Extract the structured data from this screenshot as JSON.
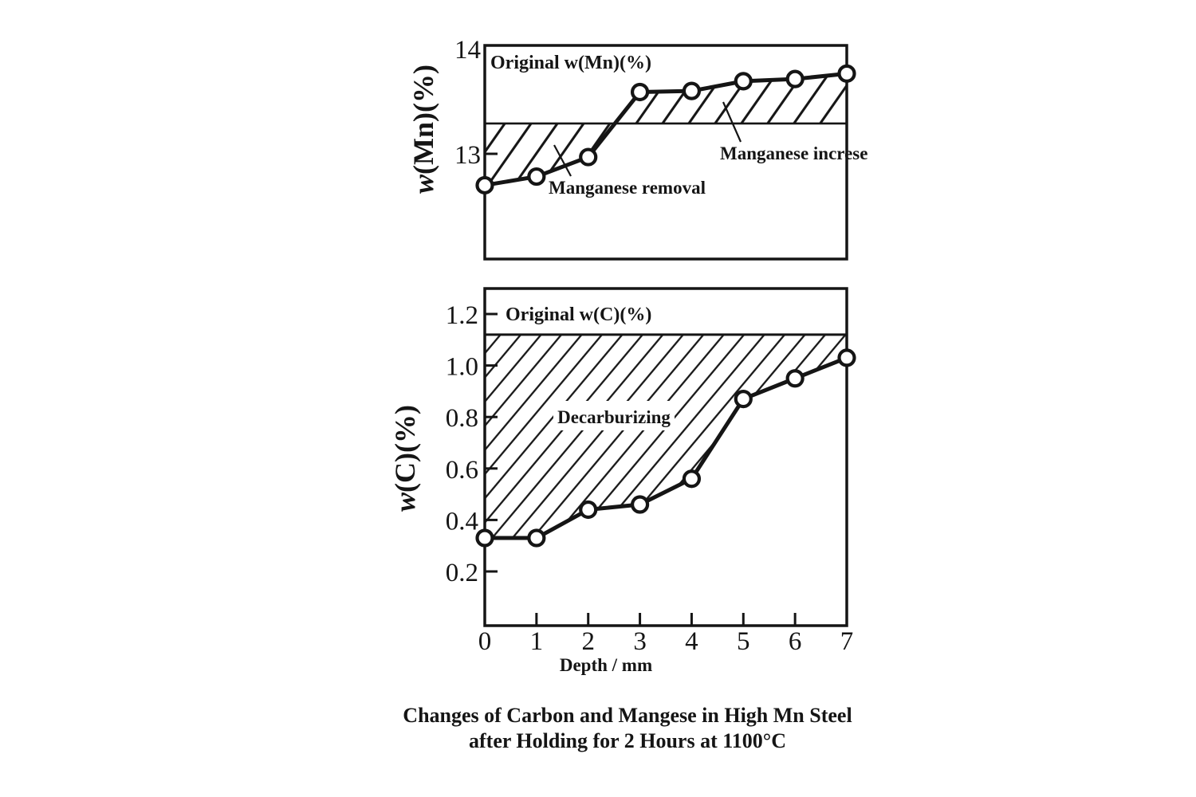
{
  "figure": {
    "caption_line1": "Changes of Carbon and Mangese in High Mn Steel",
    "caption_line2": "after Holding for 2 Hours at 1100°C"
  },
  "mn_chart": {
    "ylabel_w": "w",
    "ylabel_rest": "(Mn)(%)",
    "inner_label": "Original w(Mn)(%)",
    "annotation_removal": "Manganese removal",
    "annotation_increase": "Manganese increse",
    "yticks": [
      {
        "value": 14,
        "label": "14"
      },
      {
        "value": 13,
        "label": "13"
      }
    ]
  },
  "c_chart": {
    "ylabel_w": "w",
    "ylabel_rest": "(C)(%)",
    "inner_label": "Original w(C)(%)",
    "annotation": "Decarburizing",
    "xlabel": "Depth / mm",
    "yticks": [
      {
        "value": 1.2,
        "label": "1.2"
      },
      {
        "value": 1.0,
        "label": "1.0"
      },
      {
        "value": 0.8,
        "label": "0.8"
      },
      {
        "value": 0.6,
        "label": "0.6"
      },
      {
        "value": 0.4,
        "label": "0.4"
      },
      {
        "value": 0.2,
        "label": "0.2"
      }
    ],
    "xticks": [
      {
        "value": 0,
        "label": "0"
      },
      {
        "value": 1,
        "label": "1"
      },
      {
        "value": 2,
        "label": "2"
      },
      {
        "value": 3,
        "label": "3"
      },
      {
        "value": 4,
        "label": "4"
      },
      {
        "value": 5,
        "label": "5"
      },
      {
        "value": 6,
        "label": "6"
      },
      {
        "value": 7,
        "label": "7"
      }
    ]
  },
  "chart_data": [
    {
      "type": "line",
      "title": "Manganese content vs depth",
      "xlabel": "Depth / mm",
      "ylabel": "w(Mn)(%)",
      "x": [
        0,
        1,
        2,
        3,
        4,
        5,
        6,
        7
      ],
      "series": [
        {
          "name": "w(Mn)",
          "values": [
            12.71,
            12.79,
            12.97,
            13.57,
            13.58,
            13.67,
            13.69,
            13.74
          ]
        }
      ],
      "reference_line": {
        "label": "Original w(Mn)(%)",
        "value": 13.28
      },
      "annotations": [
        "Manganese removal",
        "Manganese increse"
      ],
      "xlim": [
        0,
        7
      ],
      "ylim": [
        12.03,
        14.0
      ],
      "yticks": [
        13,
        14
      ],
      "grid": false,
      "marker": "open-circle",
      "hatch": "region between curve and original level"
    },
    {
      "type": "line",
      "title": "Carbon content vs depth",
      "xlabel": "Depth / mm",
      "ylabel": "w(C)(%)",
      "x": [
        0,
        1,
        2,
        3,
        4,
        5,
        6,
        7
      ],
      "series": [
        {
          "name": "w(C)",
          "values": [
            0.33,
            0.33,
            0.44,
            0.46,
            0.56,
            0.87,
            0.95,
            1.03
          ]
        }
      ],
      "reference_line": {
        "label": "Original w(C)(%)",
        "value": 1.12
      },
      "annotations": [
        "Decarburizing"
      ],
      "xlim": [
        0,
        7
      ],
      "ylim": [
        0,
        1.3
      ],
      "yticks": [
        0.2,
        0.4,
        0.6,
        0.8,
        1.0,
        1.2
      ],
      "xticks": [
        0,
        1,
        2,
        3,
        4,
        5,
        6,
        7
      ],
      "grid": false,
      "marker": "open-circle",
      "hatch": "region between original level and curve"
    }
  ]
}
